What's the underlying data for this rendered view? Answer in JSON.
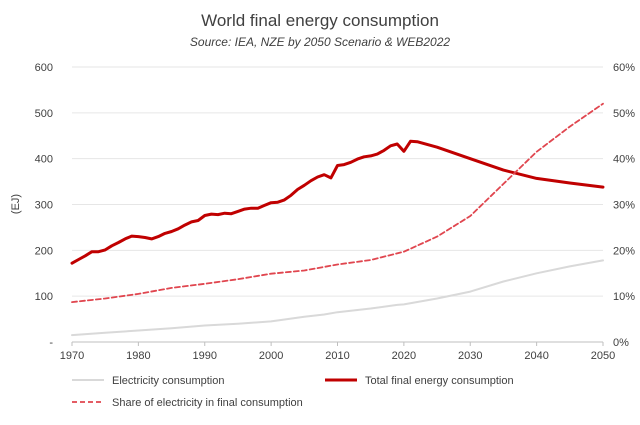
{
  "chart_data": {
    "type": "line",
    "title": "World final energy consumption",
    "subtitle": "Source: IEA, NZE by 2050 Scenario & WEB2022",
    "ylabel": "(EJ)",
    "xlim": [
      1970,
      2050
    ],
    "ylim": [
      0,
      600
    ],
    "ylim_right": [
      0,
      60
    ],
    "x_ticks": [
      1970,
      1980,
      1990,
      2000,
      2010,
      2020,
      2030,
      2040,
      2050
    ],
    "y_tick_labels": [
      "-",
      "100",
      "200",
      "300",
      "400",
      "500",
      "600"
    ],
    "y_right_tick_labels": [
      "0%",
      "10%",
      "20%",
      "30%",
      "40%",
      "50%",
      "60%"
    ],
    "grid": true,
    "legend_position": "bottom",
    "series": [
      {
        "name": "Electricity consumption",
        "axis": "left",
        "style": "solid-thin",
        "color": "#d9d9d9",
        "x": [
          1970,
          1975,
          1980,
          1985,
          1990,
          1995,
          2000,
          2005,
          2008,
          2010,
          2015,
          2019,
          2020,
          2025,
          2030,
          2035,
          2040,
          2045,
          2050
        ],
        "values": [
          15,
          20,
          25,
          30,
          36,
          40,
          45,
          55,
          60,
          65,
          73,
          81,
          82,
          95,
          110,
          132,
          150,
          165,
          178
        ]
      },
      {
        "name": "Total final energy consumption",
        "axis": "left",
        "style": "solid-thick",
        "color": "#c00000",
        "x": [
          1970,
          1971,
          1972,
          1973,
          1974,
          1975,
          1976,
          1977,
          1978,
          1979,
          1980,
          1981,
          1982,
          1983,
          1984,
          1985,
          1986,
          1987,
          1988,
          1989,
          1990,
          1991,
          1992,
          1993,
          1994,
          1995,
          1996,
          1997,
          1998,
          1999,
          2000,
          2001,
          2002,
          2003,
          2004,
          2005,
          2006,
          2007,
          2008,
          2009,
          2010,
          2011,
          2012,
          2013,
          2014,
          2015,
          2016,
          2017,
          2018,
          2019,
          2020,
          2021,
          2022,
          2025,
          2030,
          2035,
          2040,
          2045,
          2050
        ],
        "values": [
          172,
          180,
          188,
          197,
          197,
          201,
          210,
          217,
          225,
          231,
          230,
          228,
          225,
          230,
          237,
          241,
          247,
          255,
          262,
          265,
          276,
          279,
          278,
          281,
          280,
          285,
          290,
          292,
          292,
          298,
          304,
          305,
          310,
          320,
          333,
          342,
          352,
          360,
          365,
          358,
          385,
          387,
          392,
          399,
          404,
          406,
          410,
          418,
          428,
          432,
          416,
          438,
          437,
          425,
          400,
          375,
          357,
          347,
          338
        ]
      },
      {
        "name": "Share of electricity in final consumption",
        "axis": "right",
        "style": "dashed",
        "color": "#e0464f",
        "x": [
          1970,
          1975,
          1980,
          1985,
          1990,
          1995,
          2000,
          2005,
          2010,
          2015,
          2020,
          2025,
          2030,
          2035,
          2040,
          2045,
          2050
        ],
        "values": [
          8.7,
          9.5,
          10.5,
          11.8,
          12.7,
          13.7,
          14.9,
          15.6,
          16.9,
          17.9,
          19.7,
          23.0,
          27.5,
          34.5,
          41.5,
          47.0,
          52.0
        ]
      }
    ]
  }
}
